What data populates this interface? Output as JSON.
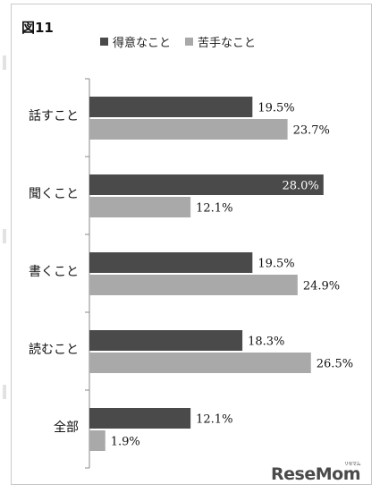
{
  "figure_label": "図11",
  "watermark": "ReseMom",
  "watermark_sub": "リセマム",
  "colors": {
    "good": "#4a4a4a",
    "bad": "#a9a9a9",
    "axis": "#888888",
    "label_inside": "#ffffff"
  },
  "chart_data": {
    "type": "bar",
    "orientation": "horizontal",
    "title": "",
    "xlabel": "",
    "ylabel": "",
    "categories": [
      "話すこと",
      "聞くこと",
      "書くこと",
      "読むこと",
      "全部"
    ],
    "series": [
      {
        "name": "得意なこと",
        "values": [
          19.5,
          28.0,
          19.5,
          18.3,
          12.1
        ],
        "labels": [
          "19.5%",
          "28.0%",
          "19.5%",
          "18.3%",
          "12.1%"
        ]
      },
      {
        "name": "苦手なこと",
        "values": [
          23.7,
          12.1,
          24.9,
          26.5,
          1.9
        ],
        "labels": [
          "23.7%",
          "12.1%",
          "24.9%",
          "26.5%",
          "1.9%"
        ]
      }
    ],
    "xlim": [
      0,
      30
    ],
    "legend": "top",
    "grid": false
  }
}
